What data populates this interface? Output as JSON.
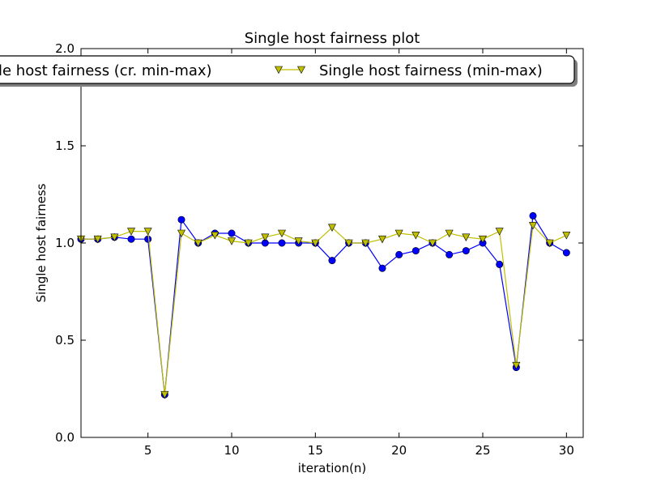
{
  "chart_data": {
    "type": "line",
    "title": "Single host fairness plot",
    "xlabel": "iteration(n)",
    "ylabel": "Single host fairness",
    "xlim": [
      1,
      31
    ],
    "ylim": [
      0.0,
      2.0
    ],
    "xticks": [
      5,
      10,
      15,
      20,
      25,
      30
    ],
    "yticks": [
      0.0,
      0.5,
      1.0,
      1.5,
      2.0
    ],
    "ytick_labels": [
      "0.0",
      "0.5",
      "1.0",
      "1.5",
      "2.0"
    ],
    "x": [
      1,
      2,
      3,
      4,
      5,
      6,
      7,
      8,
      9,
      10,
      11,
      12,
      13,
      14,
      15,
      16,
      17,
      18,
      19,
      20,
      21,
      22,
      23,
      24,
      25,
      26,
      27,
      28,
      29,
      30
    ],
    "series": [
      {
        "name": "Single host fairness (cr. min-max)",
        "legend_label": "le host fairness (cr. min-max)",
        "color": "#0000ff",
        "marker": "circle",
        "values": [
          1.02,
          1.02,
          1.03,
          1.02,
          1.02,
          0.22,
          1.12,
          1.0,
          1.05,
          1.05,
          1.0,
          1.0,
          1.0,
          1.0,
          1.0,
          0.91,
          1.0,
          1.0,
          0.87,
          0.94,
          0.96,
          1.0,
          0.94,
          0.96,
          1.0,
          0.89,
          0.36,
          1.14,
          1.0,
          0.95
        ]
      },
      {
        "name": "Single host fairness (min-max)",
        "legend_label": "Single host fairness (min-max)",
        "color": "#bfbf00",
        "marker": "triangle-down",
        "values": [
          1.02,
          1.02,
          1.03,
          1.06,
          1.06,
          0.22,
          1.05,
          1.0,
          1.04,
          1.01,
          1.0,
          1.03,
          1.05,
          1.01,
          1.0,
          1.08,
          1.0,
          1.0,
          1.02,
          1.05,
          1.04,
          1.0,
          1.05,
          1.03,
          1.02,
          1.06,
          0.37,
          1.09,
          1.0,
          1.04
        ]
      }
    ],
    "grid": false,
    "legend": "top"
  }
}
